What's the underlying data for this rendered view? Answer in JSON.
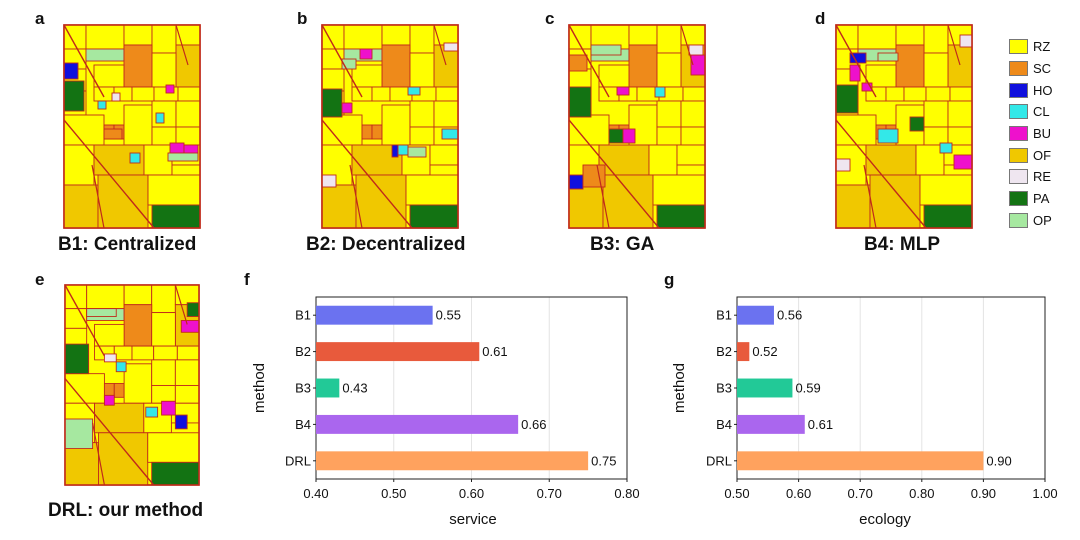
{
  "panels": {
    "a": {
      "letter": "a",
      "title": "B1: Centralized"
    },
    "b": {
      "letter": "b",
      "title": "B2: Decentralized"
    },
    "c": {
      "letter": "c",
      "title": "B3: GA"
    },
    "d": {
      "letter": "d",
      "title": "B4: MLP"
    },
    "e": {
      "letter": "e",
      "title": "DRL: our method"
    },
    "f": {
      "letter": "f"
    },
    "g": {
      "letter": "g"
    }
  },
  "legend": [
    {
      "code": "RZ",
      "color": "#ffff00"
    },
    {
      "code": "SC",
      "color": "#ee8a1a"
    },
    {
      "code": "HO",
      "color": "#1010dd"
    },
    {
      "code": "CL",
      "color": "#33e8e8"
    },
    {
      "code": "BU",
      "color": "#ee11cc"
    },
    {
      "code": "OF",
      "color": "#f0c800"
    },
    {
      "code": "RE",
      "color": "#efe6f0"
    },
    {
      "code": "PA",
      "color": "#137313"
    },
    {
      "code": "OP",
      "color": "#a6e8a0"
    }
  ],
  "chart_data": [
    {
      "type": "bar",
      "orientation": "horizontal",
      "categories": [
        "B1",
        "B2",
        "B3",
        "B4",
        "DRL"
      ],
      "values": [
        0.55,
        0.61,
        0.43,
        0.66,
        0.75
      ],
      "value_labels": [
        "0.55",
        "0.61",
        "0.43",
        "0.66",
        "0.75"
      ],
      "colors": [
        "#6b72f0",
        "#e85a3c",
        "#22c997",
        "#aa66ee",
        "#ffa25e"
      ],
      "xlabel": "service",
      "ylabel": "method",
      "xlim": [
        0.4,
        0.8
      ],
      "xticks": [
        "0.40",
        "0.50",
        "0.60",
        "0.70",
        "0.80"
      ],
      "grid": true
    },
    {
      "type": "bar",
      "orientation": "horizontal",
      "categories": [
        "B1",
        "B2",
        "B3",
        "B4",
        "DRL"
      ],
      "values": [
        0.56,
        0.52,
        0.59,
        0.61,
        0.9
      ],
      "value_labels": [
        "0.56",
        "0.52",
        "0.59",
        "0.61",
        "0.90"
      ],
      "colors": [
        "#6b72f0",
        "#e85a3c",
        "#22c997",
        "#aa66ee",
        "#ffa25e"
      ],
      "xlabel": "ecology",
      "ylabel": "method",
      "xlim": [
        0.5,
        1.0
      ],
      "xticks": [
        "0.50",
        "0.60",
        "0.70",
        "0.80",
        "0.90",
        "1.00"
      ],
      "grid": true
    }
  ]
}
